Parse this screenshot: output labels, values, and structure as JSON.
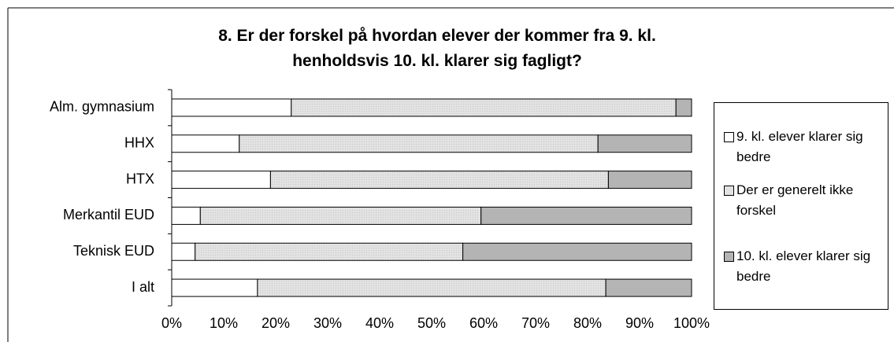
{
  "chart_data": {
    "type": "stacked-bar-horizontal",
    "title": "8. Er der forskel på hvordan elever der kommer fra 9. kl. henholdsvis 10. kl. klarer sig fagligt?",
    "categories": [
      "Alm. gymnasium",
      "HHX",
      "HTX",
      "Merkantil EUD",
      "Teknisk EUD",
      "I alt"
    ],
    "series": [
      {
        "name": "9. kl. elever klarer sig bedre",
        "color": "#ffffff",
        "values": [
          23,
          13,
          19,
          5.5,
          4.5,
          16.5
        ]
      },
      {
        "name": "Der er generelt ikke forskel",
        "color": "#e2e2e2",
        "values": [
          74,
          69,
          65,
          54,
          51.5,
          67
        ]
      },
      {
        "name": "10. kl. elever klarer sig bedre",
        "color": "#b4b4b4",
        "values": [
          3,
          18,
          16,
          40.5,
          44,
          16.5
        ]
      }
    ],
    "xlim": [
      0,
      100
    ],
    "xticks": [
      {
        "value": 0,
        "label": "0%"
      },
      {
        "value": 10,
        "label": "10%"
      },
      {
        "value": 20,
        "label": "20%"
      },
      {
        "value": 30,
        "label": "30%"
      },
      {
        "value": 40,
        "label": "40%"
      },
      {
        "value": 50,
        "label": "50%"
      },
      {
        "value": 60,
        "label": "60%"
      },
      {
        "value": 70,
        "label": "70%"
      },
      {
        "value": 80,
        "label": "80%"
      },
      {
        "value": 90,
        "label": "90%"
      },
      {
        "value": 100,
        "label": "100%"
      }
    ],
    "legend": "right"
  }
}
